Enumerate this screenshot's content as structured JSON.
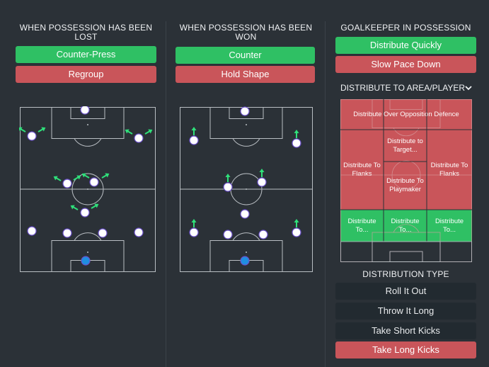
{
  "lost": {
    "title": "WHEN POSSESSION HAS BEEN LOST",
    "buttons": [
      "Counter-Press",
      "Regroup"
    ]
  },
  "won": {
    "title": "WHEN POSSESSION HAS BEEN WON",
    "buttons": [
      "Counter",
      "Hold Shape"
    ]
  },
  "gk": {
    "title": "GOALKEEPER IN POSSESSION",
    "buttons": [
      "Distribute Quickly",
      "Slow Pace Down"
    ],
    "distribute_dropdown": "DISTRIBUTE TO AREA/PLAYER",
    "zones": {
      "over_defence": "Distribute Over Opposition Defence",
      "target": "Distribute to Target...",
      "flanks_left": "Distribute To Flanks",
      "flanks_right": "Distribute To Flanks",
      "playmaker": "Distribute To Playmaker",
      "to_left": "Distribute To...",
      "to_centre": "Distribute To...",
      "to_right": "Distribute To..."
    },
    "distribution_type_title": "DISTRIBUTION TYPE",
    "distribution_types": [
      "Roll It Out",
      "Throw It Long",
      "Take Short Kicks",
      "Take Long Kicks"
    ],
    "selected_distribution": "Take Long Kicks"
  },
  "colors": {
    "background": "#2b3137",
    "green": "#2fc064",
    "red": "#c9555a",
    "dark_button": "#222a30",
    "player": "#ffffff",
    "player_outline": "#6a4fc9",
    "goalkeeper": "#1f8ee0",
    "arrow": "#2fe07a"
  },
  "icons": {
    "dropdown": "chevron-down-icon",
    "arrow": "movement-arrow-icon"
  }
}
